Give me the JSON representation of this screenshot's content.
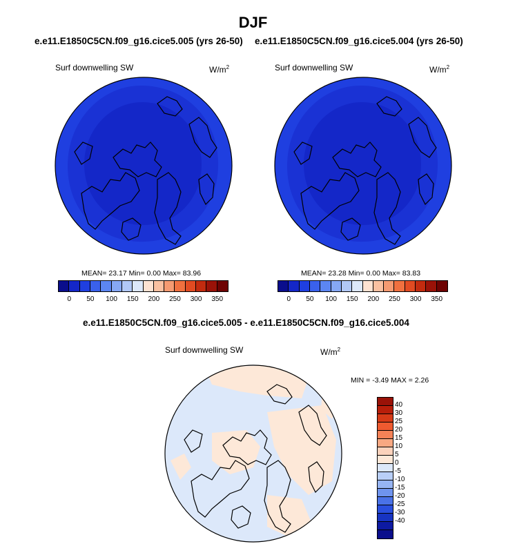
{
  "page": {
    "title": "DJF",
    "left_subtitle": "e.e11.E1850C5CN.f09_g16.cice5.005 (yrs 26-50)",
    "right_subtitle": "e.e11.E1850C5CN.f09_g16.cice5.004 (yrs 26-50)",
    "diff_subtitle": "e.e11.E1850C5CN.f09_g16.cice5.005 - e.e11.E1850C5CN.f09_g16.cice5.004"
  },
  "panels": {
    "left": {
      "variable": "Surf downwelling SW",
      "units": "W/m",
      "units_sup": "2",
      "stats": "MEAN=  23.17  Min=   0.00  Max=  83.96"
    },
    "right": {
      "variable": "Surf downwelling SW",
      "units": "W/m",
      "units_sup": "2",
      "stats": "MEAN=  23.28  Min=   0.00  Max=  83.83"
    },
    "diff": {
      "variable": "Surf downwelling SW",
      "units": "W/m",
      "units_sup": "2",
      "stats": "MIN =  -3.49 MAX =   2.26"
    }
  },
  "colorbar_main": {
    "colors": [
      "#0a0e8c",
      "#1427c8",
      "#1f3fe0",
      "#3a61ec",
      "#5c86f2",
      "#86a8f4",
      "#b1c8f6",
      "#dce8fa",
      "#fde2d2",
      "#f9c0a1",
      "#f59a71",
      "#f0703f",
      "#e14b22",
      "#c22b0f",
      "#9a1208",
      "#6e0303"
    ],
    "tick_labels": [
      "0",
      "50",
      "100",
      "150",
      "200",
      "250",
      "300",
      "350"
    ]
  },
  "colorbar_diff": {
    "colors": [
      "#9a1208",
      "#b81e0a",
      "#d63a17",
      "#ee5a30",
      "#f58257",
      "#f8a882",
      "#fbd2bc",
      "#fde8d8",
      "#dce8fa",
      "#b9cff7",
      "#97b5f3",
      "#6f94ee",
      "#4a72e7",
      "#2a4fde",
      "#1734c2",
      "#0d1aa2",
      "#0a0e8c"
    ],
    "labels": [
      "40",
      "30",
      "25",
      "20",
      "15",
      "10",
      "5",
      "0",
      "-5",
      "-10",
      "-15",
      "-20",
      "-25",
      "-30",
      "-40"
    ]
  },
  "map_colors": {
    "outer_ring": "#1f3fe0",
    "inner_ring": "#1a32d4",
    "center": "#1427c8",
    "diff_base": "#dce8fa",
    "diff_warm": "#fde8d8"
  }
}
